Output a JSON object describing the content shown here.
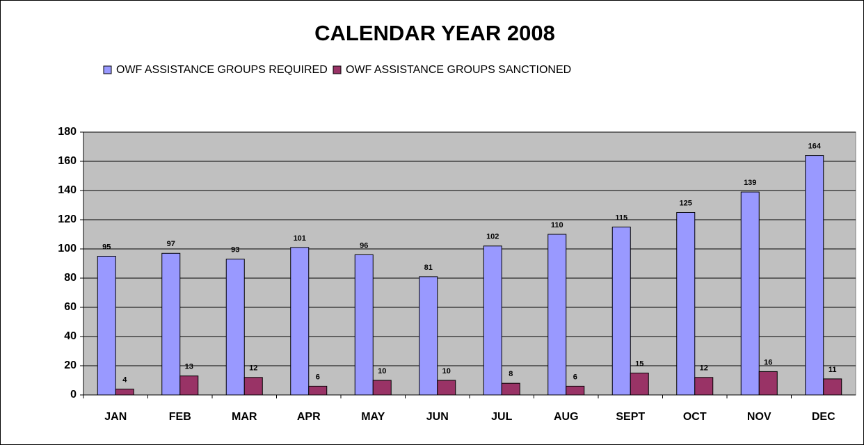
{
  "chart_data": {
    "type": "bar",
    "title": "CALENDAR YEAR 2008",
    "categories": [
      "JAN",
      "FEB",
      "MAR",
      "APR",
      "MAY",
      "JUN",
      "JUL",
      "AUG",
      "SEPT",
      "OCT",
      "NOV",
      "DEC"
    ],
    "series": [
      {
        "name": "OWF ASSISTANCE GROUPS REQUIRED",
        "color": "#9999ff",
        "values": [
          95,
          97,
          93,
          101,
          96,
          81,
          102,
          110,
          115,
          125,
          139,
          164
        ]
      },
      {
        "name": "OWF ASSISTANCE GROUPS SANCTIONED",
        "color": "#993366",
        "values": [
          4,
          13,
          12,
          6,
          10,
          10,
          8,
          6,
          15,
          12,
          16,
          11
        ]
      }
    ],
    "ylim": [
      0,
      180
    ],
    "yticks": [
      0,
      20,
      40,
      60,
      80,
      100,
      120,
      140,
      160,
      180
    ],
    "grid": true,
    "legend": "top"
  }
}
